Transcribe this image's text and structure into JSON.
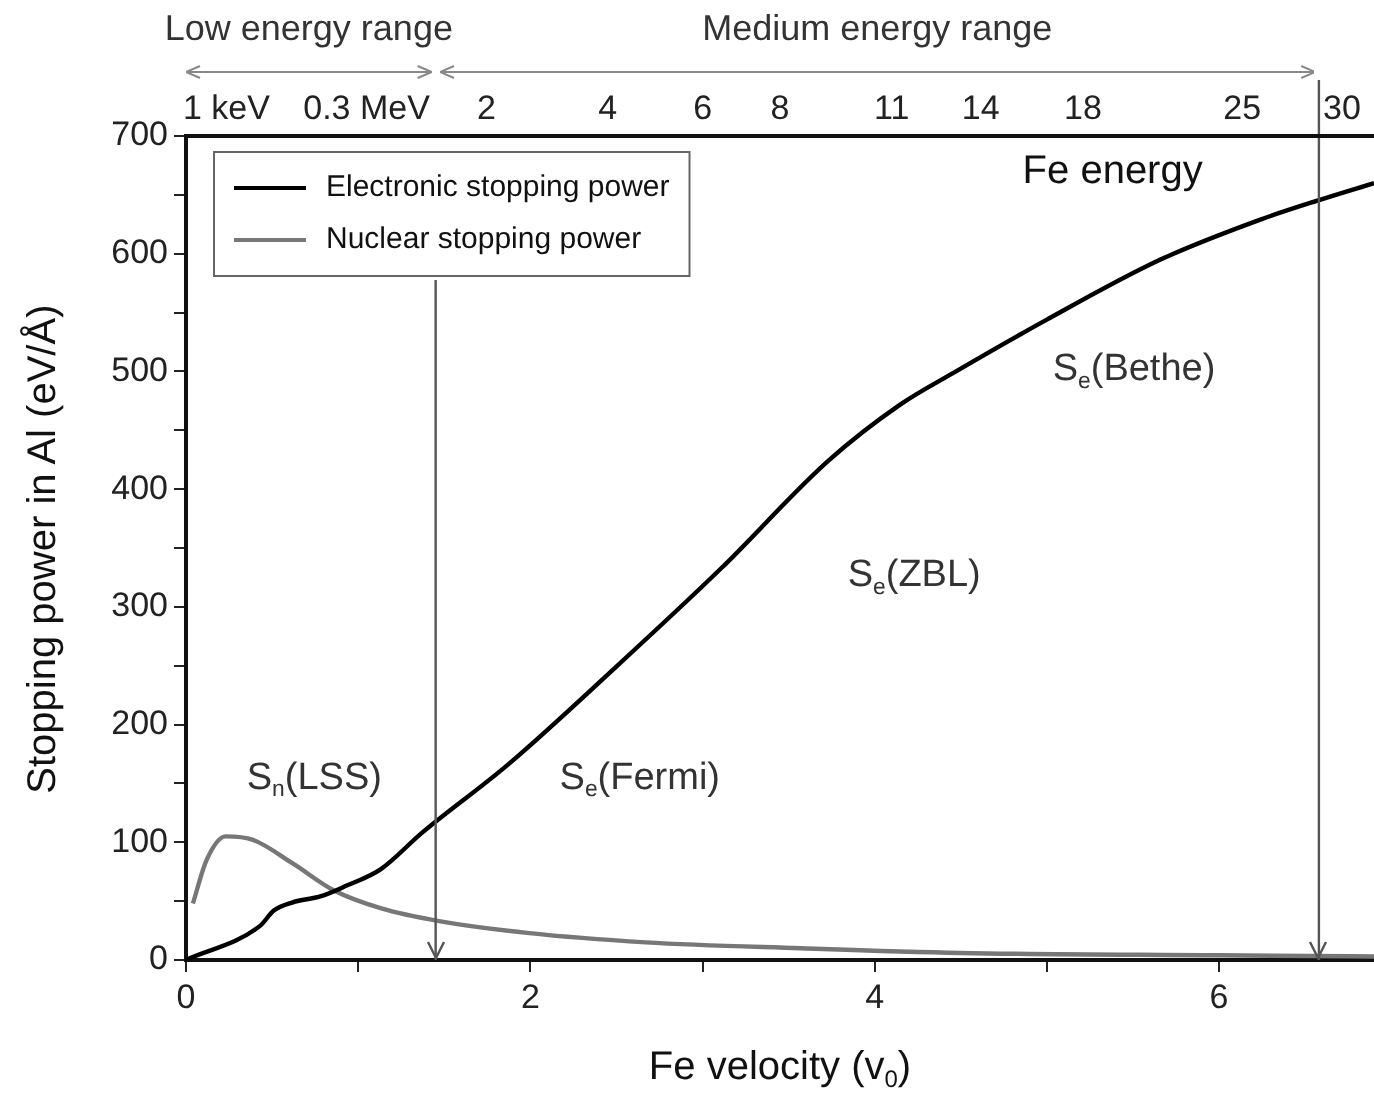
{
  "chart_data": {
    "type": "line",
    "xlabel": "Fe velocity (v$_{0}$)",
    "ylabel": "Stopping power in Al (eV/Å)",
    "x2label": "Fe energy",
    "xlim": [
      0,
      6.9
    ],
    "ylim": [
      0,
      700
    ],
    "xticks": [
      0,
      {
        "value": 1,
        "label": null
      },
      2,
      {
        "value": 3,
        "label": null
      },
      4,
      {
        "value": 5,
        "label": null
      },
      6
    ],
    "yticks": [
      0,
      {
        "value": 50,
        "label": null
      },
      100,
      {
        "value": 150,
        "label": null
      },
      200,
      {
        "value": 250,
        "label": null
      },
      300,
      {
        "value": 350,
        "label": null
      },
      400,
      {
        "value": 450,
        "label": null
      },
      500,
      {
        "value": 550,
        "label": null
      },
      600,
      {
        "value": 650,
        "label": null
      },
      700
    ],
    "series": [
      {
        "name": "Electronic stopping power",
        "color": "#000000",
        "x": [
          0,
          0.43,
          0.51,
          0.62,
          0.78,
          0.93,
          1.13,
          1.37,
          1.87,
          2.49,
          3.11,
          3.73,
          4.15,
          4.46,
          5.0,
          5.66,
          6.24,
          6.59,
          6.9
        ],
        "values": [
          0,
          29,
          42,
          49,
          54,
          63,
          77,
          108,
          166,
          248,
          333,
          424,
          472,
          499,
          544,
          595,
          629,
          646,
          660
        ]
      },
      {
        "name": "Nuclear stopping power",
        "color": "#777777",
        "x": [
          0.04,
          0.12,
          0.23,
          0.39,
          0.62,
          0.86,
          1.13,
          1.47,
          1.98,
          2.67,
          3.57,
          4.5,
          6.0,
          6.9
        ],
        "values": [
          48,
          85,
          105,
          102,
          82,
          59,
          44,
          33,
          23,
          15,
          10,
          6,
          4,
          3
        ]
      }
    ],
    "annotations": [
      "Low energy range",
      "Medium energy range",
      "1 keV",
      "0.3 MeV",
      "2",
      "4",
      "6",
      "8",
      "11",
      "14",
      "18",
      "25",
      "30",
      "S$_{n}$(LSS)",
      "S$_{e}$(Fermi)",
      "S$_{e}$(ZBL)",
      "S$_{e}$(Bethe)"
    ],
    "ref_lines": [
      {
        "axis": "x",
        "value": 1.45,
        "color": "#555555"
      },
      {
        "axis": "x",
        "value": 6.58,
        "color": "#555555"
      }
    ],
    "legend": "top left",
    "grid": false,
    "marker": "none",
    "line_style": "solid"
  }
}
